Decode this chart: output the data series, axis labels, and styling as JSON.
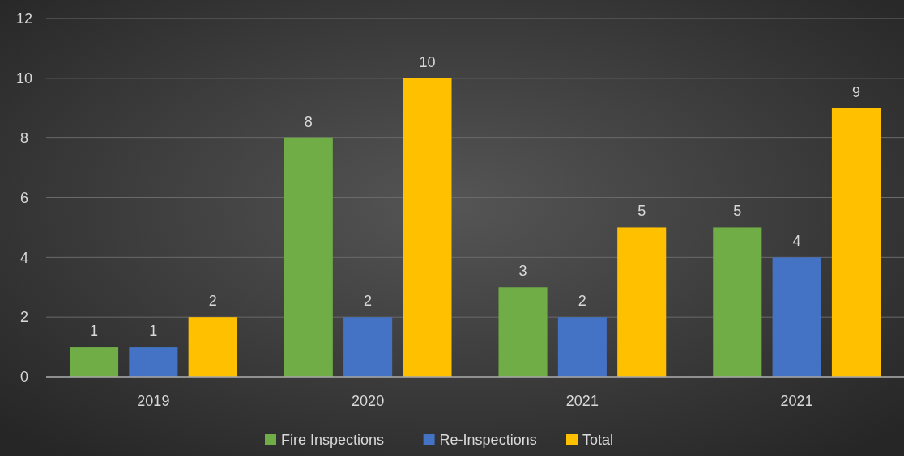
{
  "chart_data": {
    "type": "bar",
    "categories": [
      "2019",
      "2020",
      "2021",
      "2021"
    ],
    "series": [
      {
        "name": "Fire Inspections",
        "color": "#70ad47",
        "values": [
          1,
          8,
          3,
          5
        ]
      },
      {
        "name": "Re-Inspections",
        "color": "#4472c4",
        "values": [
          1,
          2,
          2,
          4
        ]
      },
      {
        "name": "Total",
        "color": "#ffc000",
        "values": [
          2,
          10,
          5,
          9
        ]
      }
    ],
    "ylim": [
      0,
      12
    ],
    "yticks": [
      0,
      2,
      4,
      6,
      8,
      10,
      12
    ],
    "grid": "y",
    "legend": "bottom",
    "data_labels": true
  }
}
